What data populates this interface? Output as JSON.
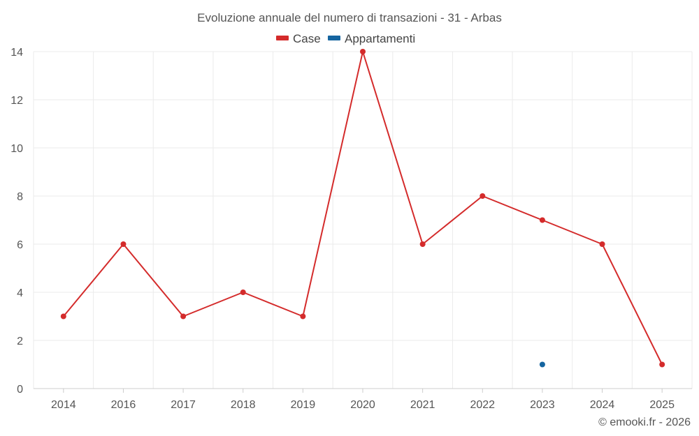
{
  "chart_data": {
    "type": "line",
    "title": "Evoluzione annuale del numero di transazioni - 31 - Arbas",
    "categories": [
      "2014",
      "2016",
      "2017",
      "2018",
      "2019",
      "2020",
      "2021",
      "2022",
      "2023",
      "2024",
      "2025"
    ],
    "series": [
      {
        "name": "Case",
        "color": "#d42b2b",
        "values": [
          3,
          6,
          3,
          4,
          3,
          14,
          6,
          8,
          7,
          6,
          1
        ]
      },
      {
        "name": "Appartamenti",
        "color": "#1565a0",
        "values": [
          null,
          null,
          null,
          null,
          null,
          null,
          null,
          null,
          1,
          null,
          null
        ]
      }
    ],
    "ylim": [
      0,
      14
    ],
    "yticks": [
      "0",
      "2",
      "4",
      "6",
      "8",
      "10",
      "12",
      "14"
    ],
    "grid": true,
    "legend_position": "top-center"
  },
  "credit": "© emooki.fr - 2026"
}
